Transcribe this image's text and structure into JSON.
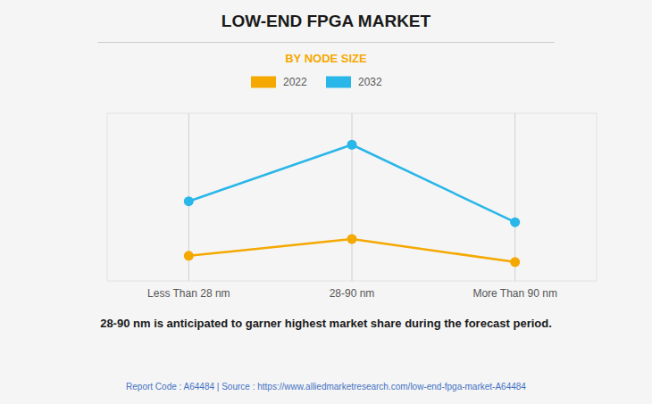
{
  "chart_data": {
    "type": "line",
    "title": "LOW-END FPGA MARKET",
    "subtitle": "BY NODE SIZE",
    "categories": [
      "Less Than 28 nm",
      "28-90 nm",
      "More Than 90 nm"
    ],
    "series": [
      {
        "name": "2022",
        "color": "#F5A800",
        "values": [
          1.2,
          2.0,
          0.9
        ],
        "marker": "circle"
      },
      {
        "name": "2032",
        "color": "#29B6E8",
        "values": [
          3.8,
          6.5,
          2.8
        ],
        "marker": "circle"
      }
    ],
    "ylim": [
      0,
      8
    ],
    "grid": true,
    "legend": "top",
    "tick_labels": "x",
    "annotations": [
      "28-90 nm is anticipated to garner highest market share during the forecast period.",
      "Report Code : A64484  |  Source : https://www.alliedmarketresearch.com/low-end-fpga-market-A64484"
    ]
  }
}
